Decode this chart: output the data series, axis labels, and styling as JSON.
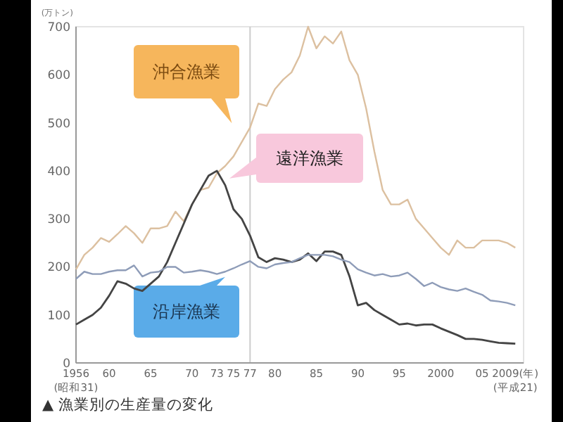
{
  "chart_data": {
    "type": "line",
    "title": "▲ 漁業別の生産量の変化",
    "ylabel": "(万トン)",
    "x": [
      1956,
      1957,
      1958,
      1959,
      1960,
      1961,
      1962,
      1963,
      1964,
      1965,
      1966,
      1967,
      1968,
      1969,
      1970,
      1971,
      1972,
      1973,
      1974,
      1975,
      1976,
      1977,
      1978,
      1979,
      1980,
      1981,
      1982,
      1983,
      1984,
      1985,
      1986,
      1987,
      1988,
      1989,
      1990,
      1991,
      1992,
      1993,
      1994,
      1995,
      1996,
      1997,
      1998,
      1999,
      2000,
      2001,
      2002,
      2003,
      2004,
      2005,
      2006,
      2007,
      2008,
      2009
    ],
    "series": [
      {
        "name": "沖合漁業",
        "color": "#dcc0a0",
        "values": [
          195,
          225,
          240,
          260,
          252,
          268,
          285,
          270,
          250,
          280,
          280,
          285,
          315,
          295,
          330,
          360,
          365,
          395,
          410,
          430,
          460,
          490,
          540,
          535,
          570,
          590,
          605,
          640,
          700,
          655,
          680,
          665,
          690,
          630,
          600,
          530,
          440,
          360,
          330,
          330,
          340,
          300,
          280,
          260,
          240,
          225,
          255,
          240,
          240,
          255,
          255,
          255,
          250,
          240
        ]
      },
      {
        "name": "遠洋漁業",
        "color": "#444444",
        "values": [
          80,
          90,
          100,
          115,
          140,
          170,
          165,
          155,
          150,
          165,
          180,
          210,
          250,
          290,
          330,
          360,
          390,
          400,
          370,
          320,
          300,
          265,
          220,
          210,
          218,
          215,
          210,
          215,
          228,
          212,
          232,
          232,
          225,
          180,
          120,
          125,
          110,
          100,
          90,
          80,
          82,
          78,
          80,
          80,
          72,
          65,
          58,
          50,
          50,
          48,
          45,
          42,
          41,
          40
        ]
      },
      {
        "name": "沿岸漁業",
        "color": "#8e9cb8",
        "values": [
          175,
          190,
          185,
          185,
          190,
          193,
          193,
          203,
          180,
          188,
          190,
          200,
          200,
          188,
          190,
          193,
          190,
          185,
          190,
          197,
          205,
          212,
          200,
          197,
          205,
          208,
          210,
          218,
          225,
          225,
          225,
          222,
          215,
          210,
          195,
          188,
          182,
          185,
          180,
          182,
          188,
          175,
          160,
          167,
          158,
          153,
          150,
          155,
          148,
          142,
          130,
          128,
          125,
          120
        ]
      }
    ],
    "xlim": [
      1956,
      2010
    ],
    "ylim": [
      0,
      700
    ],
    "xticks": [
      {
        "value": 1956,
        "label": "1956"
      },
      {
        "value": 1960,
        "label": "60"
      },
      {
        "value": 1965,
        "label": "65"
      },
      {
        "value": 1970,
        "label": "70"
      },
      {
        "value": 1973,
        "label": "73"
      },
      {
        "value": 1975,
        "label": "75"
      },
      {
        "value": 1977,
        "label": "77"
      },
      {
        "value": 1980,
        "label": "80"
      },
      {
        "value": 1985,
        "label": "85"
      },
      {
        "value": 1990,
        "label": "90"
      },
      {
        "value": 1995,
        "label": "95"
      },
      {
        "value": 2000,
        "label": "2000"
      },
      {
        "value": 2005,
        "label": "05"
      },
      {
        "value": 2009,
        "label": "2009(年)"
      }
    ],
    "yticks": [
      0,
      100,
      200,
      300,
      400,
      500,
      600,
      700
    ],
    "ref_lines": [
      {
        "axis": "x",
        "value": 1977,
        "color": "#cccccc"
      }
    ],
    "annotations": [
      "(昭和31)",
      "(平成21)"
    ],
    "grid": false,
    "legend": false,
    "marker": "none",
    "line_style": "solid"
  }
}
